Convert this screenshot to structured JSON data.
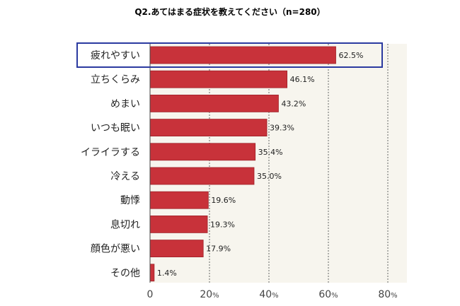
{
  "chart_data": {
    "type": "bar",
    "orientation": "horizontal",
    "title": "Q2.あてはまる症状を教えてください（n=280）",
    "categories": [
      "疲れやすい",
      "立ちくらみ",
      "めまい",
      "いつも眠い",
      "イライラする",
      "冷える",
      "動悸",
      "息切れ",
      "顔色が悪い",
      "その他"
    ],
    "values": [
      62.5,
      46.1,
      43.2,
      39.3,
      35.4,
      35.0,
      19.6,
      19.3,
      17.9,
      1.4
    ],
    "value_labels": [
      "62.5%",
      "46.1%",
      "43.2%",
      "39.3%",
      "35.4%",
      "35.0%",
      "19.6%",
      "19.3%",
      "17.9%",
      "1.4%"
    ],
    "xlim": [
      0,
      85
    ],
    "ticks": [
      {
        "value": 0,
        "label": "0",
        "suffix": ""
      },
      {
        "value": 20,
        "label": "20",
        "suffix": "%"
      },
      {
        "value": 40,
        "label": "40",
        "suffix": "%"
      },
      {
        "value": 60,
        "label": "60",
        "suffix": "%"
      },
      {
        "value": 80,
        "label": "80",
        "suffix": "%"
      }
    ],
    "highlighted_category": "疲れやすい",
    "grid": true,
    "colors": {
      "bar": "#c8323a",
      "bar_edge": "#9e2128",
      "plot_background": "#f7f5ee",
      "grid": "#666666",
      "highlight_border": "#2b3aa0"
    }
  }
}
